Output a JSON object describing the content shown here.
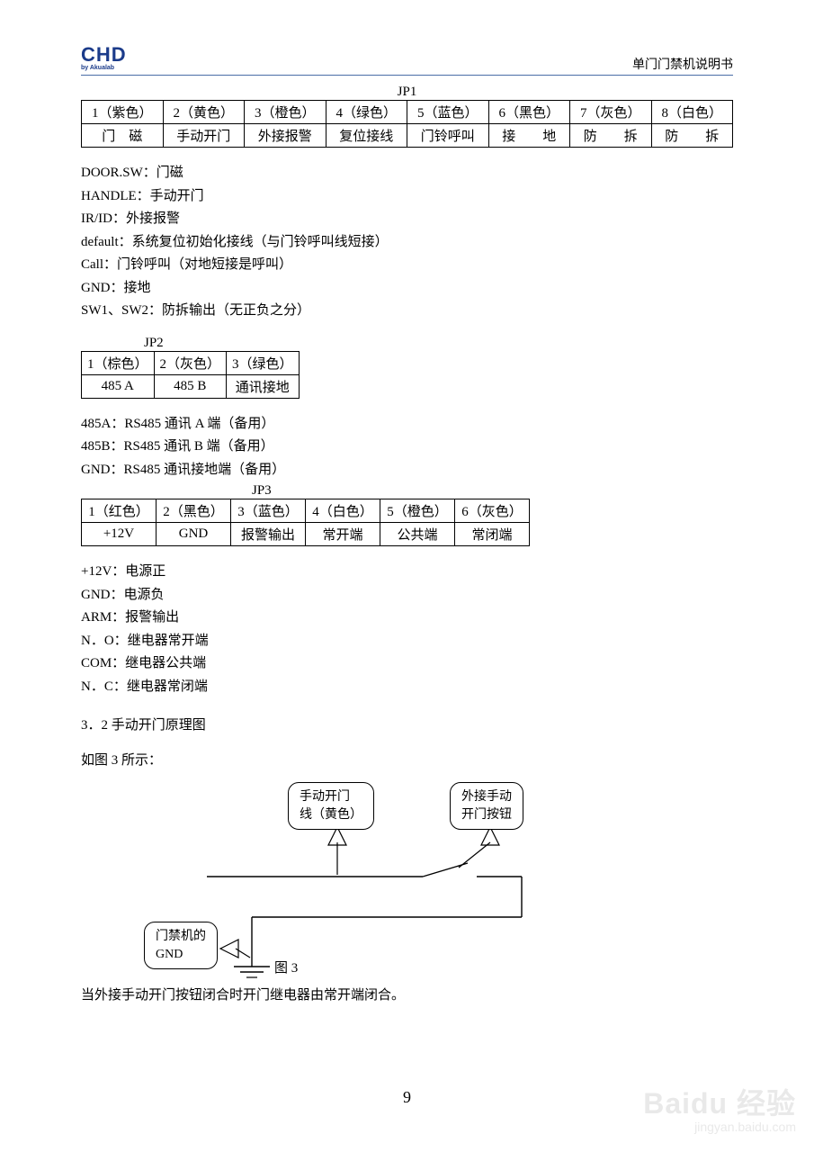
{
  "header": {
    "logo_text": "CHD",
    "logo_sub": "by Akualab",
    "title": "单门门禁机说明书"
  },
  "jp1": {
    "title": "JP1",
    "row1": [
      "1（紫色）",
      "2（黄色）",
      "3（橙色）",
      "4（绿色）",
      "5（蓝色）",
      "6（黑色）",
      "7（灰色）",
      "8（白色）"
    ],
    "row2": [
      "门　磁",
      "手动开门",
      "外接报警",
      "复位接线",
      "门铃呼叫",
      "接　　地",
      "防　　拆",
      "防　　拆"
    ]
  },
  "jp1_defs": [
    "DOOR.SW：门磁",
    "HANDLE：手动开门",
    "IR/ID：外接报警",
    "default：系统复位初始化接线（与门铃呼叫线短接）",
    "Call：门铃呼叫（对地短接是呼叫）",
    "GND：接地",
    "SW1、SW2：防拆输出（无正负之分）"
  ],
  "jp2": {
    "title": "JP2",
    "row1": [
      "1（棕色）",
      "2（灰色）",
      "3（绿色）"
    ],
    "row2": [
      "485 A",
      "485 B",
      "通讯接地"
    ]
  },
  "jp2_defs": [
    "485A：RS485 通讯 A 端（备用）",
    "485B：RS485 通讯 B 端（备用）",
    "GND：RS485 通讯接地端（备用）"
  ],
  "jp3": {
    "title": "JP3",
    "row1": [
      "1（红色）",
      "2（黑色）",
      "3（蓝色）",
      "4（白色）",
      "5（橙色）",
      "6（灰色）"
    ],
    "row2": [
      "+12V",
      "GND",
      "报警输出",
      "常开端",
      "公共端",
      "常闭端"
    ]
  },
  "jp3_defs": [
    "+12V：电源正",
    "GND：电源负",
    "ARM：报警输出",
    "N．O：继电器常开端",
    "COM：继电器公共端",
    "N．C：继电器常闭端"
  ],
  "section": "3．2 手动开门原理图",
  "fig_intro": "如图 3 所示：",
  "diagram": {
    "callout1": "手动开门\n线（黄色）",
    "callout2": "外接手动\n开门按钮",
    "callout3": "门禁机的\nGND",
    "fig_label": "图 3"
  },
  "footer_note": "当外接手动开门按钮闭合时开门继电器由常开端闭合。",
  "page_number": "9",
  "watermark": {
    "big": "Baidu 经验",
    "small": "jingyan.baidu.com"
  },
  "colors": {
    "header_line": "#4a6da7",
    "logo": "#1b3b8a",
    "watermark": "#e9e9e9"
  }
}
